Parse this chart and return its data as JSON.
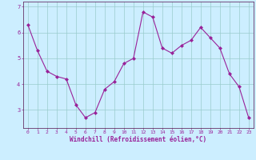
{
  "x": [
    0,
    1,
    2,
    3,
    4,
    5,
    6,
    7,
    8,
    9,
    10,
    11,
    12,
    13,
    14,
    15,
    16,
    17,
    18,
    19,
    20,
    21,
    22,
    23
  ],
  "y": [
    6.3,
    5.3,
    4.5,
    4.3,
    4.2,
    3.2,
    2.7,
    2.9,
    3.8,
    4.1,
    4.8,
    5.0,
    6.8,
    6.6,
    5.4,
    5.2,
    5.5,
    5.7,
    6.2,
    5.8,
    5.4,
    4.4,
    3.9,
    2.7
  ],
  "line_color": "#992299",
  "marker": "D",
  "markersize": 2.0,
  "linewidth": 0.8,
  "bg_color": "#cceeff",
  "grid_color": "#99cccc",
  "xlabel": "Windchill (Refroidissement éolien,°C)",
  "xlabel_fontsize": 5.5,
  "xtick_fontsize": 4.5,
  "ytick_fontsize": 5.0,
  "label_color": "#992299",
  "axis_color": "#663366",
  "ylim": [
    2.3,
    7.2
  ],
  "xlim": [
    -0.5,
    23.5
  ],
  "yticks": [
    3,
    4,
    5,
    6,
    7
  ],
  "xticks": [
    0,
    1,
    2,
    3,
    4,
    5,
    6,
    7,
    8,
    9,
    10,
    11,
    12,
    13,
    14,
    15,
    16,
    17,
    18,
    19,
    20,
    21,
    22,
    23
  ]
}
